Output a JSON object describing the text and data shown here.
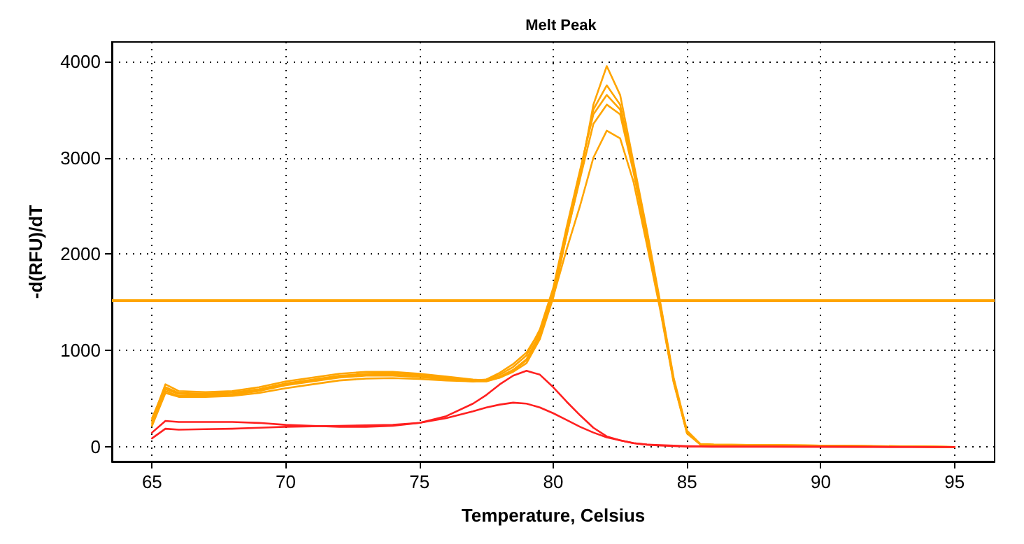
{
  "chart_data": {
    "type": "line",
    "title": "Melt Peak",
    "xlabel": "Temperature, Celsius",
    "ylabel": "-d(RFU)/dT",
    "x": [
      65,
      65.5,
      66,
      67,
      68,
      69,
      70,
      71,
      72,
      73,
      74,
      75,
      76,
      77,
      77.5,
      78,
      78.5,
      79,
      79.5,
      80,
      80.5,
      81,
      81.5,
      82,
      82.5,
      83,
      83.5,
      84,
      84.5,
      85,
      85.5,
      86,
      88,
      90,
      92,
      95
    ],
    "series": [
      {
        "color": "#ffa500",
        "values": [
          280,
          650,
          580,
          570,
          580,
          620,
          680,
          720,
          760,
          780,
          780,
          760,
          730,
          700,
          690,
          720,
          780,
          870,
          1120,
          1550,
          2200,
          2800,
          3550,
          3950,
          3650,
          2950,
          2250,
          1500,
          720,
          170,
          30,
          25,
          20,
          15,
          10,
          0
        ]
      },
      {
        "color": "#ffa500",
        "values": [
          300,
          620,
          560,
          555,
          565,
          600,
          660,
          700,
          740,
          760,
          765,
          750,
          720,
          690,
          690,
          730,
          800,
          910,
          1180,
          1620,
          2250,
          2850,
          3500,
          3750,
          3550,
          2900,
          2200,
          1480,
          700,
          160,
          30,
          25,
          20,
          15,
          10,
          0
        ]
      },
      {
        "color": "#ffa500",
        "values": [
          260,
          600,
          550,
          545,
          550,
          590,
          650,
          690,
          730,
          750,
          750,
          735,
          710,
          690,
          700,
          750,
          830,
          950,
          1220,
          1650,
          2280,
          2870,
          3450,
          3650,
          3500,
          2880,
          2180,
          1460,
          690,
          150,
          28,
          22,
          18,
          14,
          8,
          0
        ]
      },
      {
        "color": "#ffa500",
        "values": [
          240,
          580,
          530,
          530,
          540,
          580,
          640,
          680,
          720,
          740,
          740,
          725,
          700,
          680,
          680,
          720,
          790,
          900,
          1150,
          1580,
          2200,
          2780,
          3350,
          3550,
          3450,
          2850,
          2150,
          1440,
          680,
          150,
          28,
          22,
          18,
          14,
          8,
          0
        ]
      },
      {
        "color": "#ffa500",
        "values": [
          220,
          560,
          520,
          520,
          530,
          560,
          610,
          650,
          690,
          710,
          715,
          705,
          690,
          680,
          700,
          770,
          860,
          980,
          1200,
          1560,
          2050,
          2500,
          3000,
          3280,
          3200,
          2750,
          2100,
          1420,
          670,
          140,
          25,
          20,
          15,
          12,
          8,
          0
        ]
      },
      {
        "color": "#ff2020",
        "values": [
          150,
          270,
          260,
          260,
          260,
          250,
          230,
          220,
          210,
          210,
          220,
          250,
          320,
          450,
          540,
          650,
          740,
          790,
          750,
          620,
          470,
          330,
          200,
          110,
          70,
          40,
          25,
          20,
          15,
          10,
          8,
          5,
          5,
          3,
          2,
          0
        ]
      },
      {
        "color": "#ff2020",
        "values": [
          90,
          190,
          180,
          185,
          190,
          200,
          210,
          215,
          220,
          225,
          230,
          250,
          300,
          370,
          410,
          440,
          460,
          450,
          410,
          350,
          280,
          210,
          150,
          100,
          70,
          40,
          25,
          15,
          10,
          5,
          4,
          3,
          3,
          2,
          1,
          0
        ]
      }
    ],
    "ref_lines": [
      {
        "axis": "y",
        "value": 1520,
        "color": "#ffa500",
        "line_style": "solid"
      }
    ],
    "xlim": [
      63.5,
      96.5
    ],
    "xticks": [
      65,
      70,
      75,
      80,
      85,
      90,
      95
    ],
    "ylim": [
      -150,
      4200
    ],
    "yticks": [
      0,
      1000,
      2000,
      3000,
      4000
    ],
    "grid": true,
    "marker": "none",
    "line_style": "solid"
  }
}
